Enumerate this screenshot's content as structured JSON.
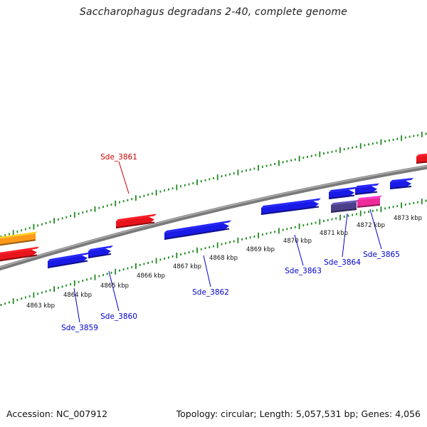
{
  "title": "Saccharophagus degradans 2-40, complete genome",
  "footer": {
    "accession": "Accession: NC_007912",
    "topology": "Topology: circular; Length: 5,057,531 bp; Genes: 4,056"
  },
  "colors": {
    "backbone": "#8a8a8a",
    "tick": "#1f8a1f",
    "forward_gene": "#e8141c",
    "reverse_gene": "#1a1ae6",
    "orange_gene": "#ff9a1a",
    "rna_gene": "#ee2a9a",
    "dark_gene": "#4b3f8a",
    "label_forward": "#cc0000",
    "label_reverse": "#0000cc"
  },
  "scale": {
    "unit": "kbp",
    "labels": [
      "4863 kbp",
      "4864 kbp",
      "4865 kbp",
      "4866 kbp",
      "4867 kbp",
      "4868 kbp",
      "4869 kbp",
      "4870 kbp",
      "4871 kbp",
      "4872 kbp",
      "4873 kbp"
    ]
  },
  "gene_labels": [
    "Sde_3861",
    "Sde_3859",
    "Sde_3860",
    "Sde_3862",
    "Sde_3863",
    "Sde_3864",
    "Sde_3865"
  ]
}
